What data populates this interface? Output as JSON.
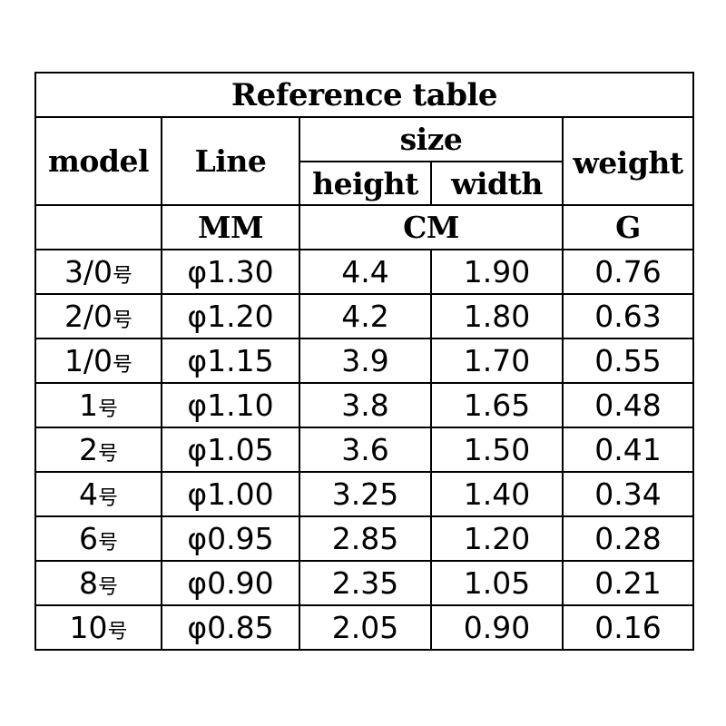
{
  "table": {
    "title": "Reference table",
    "headers": {
      "model": "model",
      "line": "Line",
      "size": "size",
      "height": "height",
      "width": "width",
      "weight": "weight"
    },
    "units": {
      "line": "MM",
      "size": "CM",
      "weight": "G"
    },
    "rows": [
      {
        "model": "3/0",
        "suffix": "号",
        "line": "φ1.30",
        "height": "4.4",
        "width": "1.90",
        "weight": "0.76"
      },
      {
        "model": "2/0",
        "suffix": "号",
        "line": "φ1.20",
        "height": "4.2",
        "width": "1.80",
        "weight": "0.63"
      },
      {
        "model": "1/0",
        "suffix": "号",
        "line": "φ1.15",
        "height": "3.9",
        "width": "1.70",
        "weight": "0.55"
      },
      {
        "model": "1",
        "suffix": "号",
        "line": "φ1.10",
        "height": "3.8",
        "width": "1.65",
        "weight": "0.48"
      },
      {
        "model": "2",
        "suffix": "号",
        "line": "φ1.05",
        "height": "3.6",
        "width": "1.50",
        "weight": "0.41"
      },
      {
        "model": "4",
        "suffix": "号",
        "line": "φ1.00",
        "height": "3.25",
        "width": "1.40",
        "weight": "0.34"
      },
      {
        "model": "6",
        "suffix": "号",
        "line": "φ0.95",
        "height": "2.85",
        "width": "1.20",
        "weight": "0.28"
      },
      {
        "model": "8",
        "suffix": "号",
        "line": "φ0.90",
        "height": "2.35",
        "width": "1.05",
        "weight": "0.21"
      },
      {
        "model": "10",
        "suffix": "号",
        "line": "φ0.85",
        "height": "2.05",
        "width": "0.90",
        "weight": "0.16"
      }
    ]
  }
}
